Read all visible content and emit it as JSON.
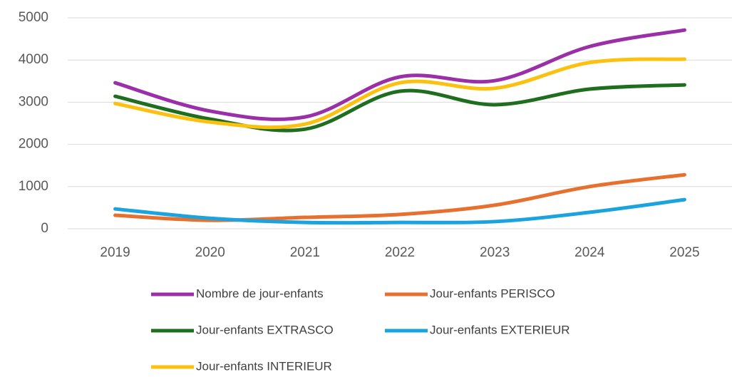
{
  "chart_data": {
    "type": "line",
    "categories": [
      "2019",
      "2020",
      "2021",
      "2022",
      "2023",
      "2024",
      "2025"
    ],
    "series": [
      {
        "name": "Nombre de jour-enfants",
        "color": "#9b2fa8",
        "values": [
          3460,
          2790,
          2650,
          3600,
          3510,
          4320,
          4710
        ]
      },
      {
        "name": "Jour-enfants PERISCO",
        "color": "#e8702e",
        "values": [
          320,
          200,
          270,
          340,
          560,
          1000,
          1280
        ]
      },
      {
        "name": "Jour-enfants EXTRASCO",
        "color": "#1f6e1f",
        "values": [
          3140,
          2600,
          2360,
          3260,
          2940,
          3310,
          3410
        ]
      },
      {
        "name": "Jour-enfants EXTERIEUR",
        "color": "#1aa3de",
        "values": [
          470,
          250,
          150,
          150,
          170,
          390,
          690
        ]
      },
      {
        "name": "Jour-enfants INTERIEUR",
        "color": "#fcc10e",
        "values": [
          2970,
          2530,
          2480,
          3460,
          3330,
          3940,
          4020
        ]
      }
    ],
    "ylim": [
      0,
      5000
    ],
    "yticks": [
      0,
      1000,
      2000,
      3000,
      4000,
      5000
    ],
    "grid": true,
    "legend": "bottom"
  }
}
